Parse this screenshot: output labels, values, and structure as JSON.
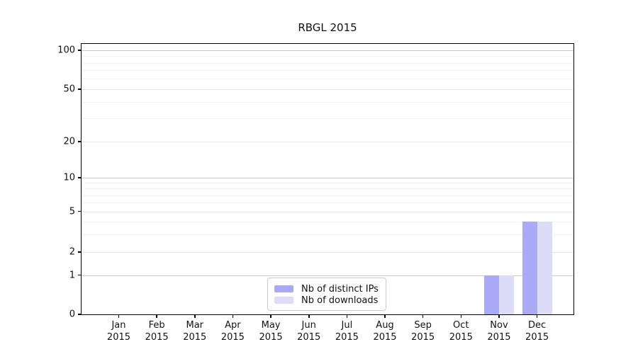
{
  "title": "RBGL 2015",
  "chart_data": {
    "type": "bar",
    "title": "RBGL 2015",
    "categories": [
      "Jan 2015",
      "Feb 2015",
      "Mar 2015",
      "Apr 2015",
      "May 2015",
      "Jun 2015",
      "Jul 2015",
      "Aug 2015",
      "Sep 2015",
      "Oct 2015",
      "Nov 2015",
      "Dec 2015"
    ],
    "series": [
      {
        "name": "Nb of distinct IPs",
        "color": "#a9a9f6",
        "values": [
          0,
          0,
          0,
          0,
          0,
          0,
          0,
          0,
          0,
          0,
          1,
          4
        ]
      },
      {
        "name": "Nb of downloads",
        "color": "#dcdcf8",
        "values": [
          0,
          0,
          0,
          0,
          0,
          0,
          0,
          0,
          0,
          0,
          1,
          4
        ]
      }
    ],
    "xlabel": "",
    "ylabel": "",
    "y_ticks": [
      0,
      1,
      2,
      5,
      10,
      20,
      50,
      100
    ],
    "y_tick_labels": [
      "0",
      "1",
      "2",
      "5",
      "10",
      "20",
      "50",
      "100"
    ],
    "ylim": [
      0,
      100
    ],
    "y_scale": "log above 1, zero pinned to baseline",
    "grid": "horizontal major and minor gridlines",
    "legend_position": "inside bottom-center"
  },
  "legend": {
    "items": [
      {
        "label": "Nb of distinct IPs",
        "color": "#a9a9f6"
      },
      {
        "label": "Nb of downloads",
        "color": "#dcdcf8"
      }
    ]
  },
  "colors": {
    "bar_distinct_ips": "#a9a9f6",
    "bar_downloads": "#dcdcf8",
    "grid_major_decade": "#c9c9c9",
    "grid_major_other": "#e7e7e7",
    "grid_minor": "#f1f1f1",
    "axis": "#000000"
  }
}
